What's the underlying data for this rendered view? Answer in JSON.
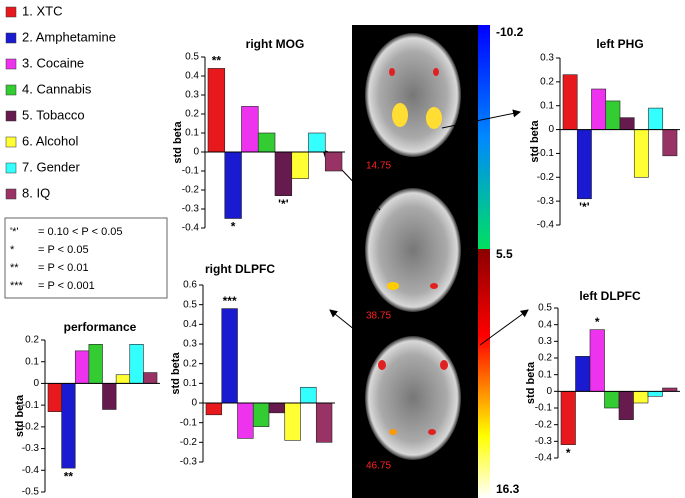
{
  "legend": {
    "names": [
      "1. XTC",
      "2. Amphetamine",
      "3. Cocaine",
      "4. Cannabis",
      "5. Tobacco",
      "6. Alcohol",
      "7. Gender",
      "8. IQ"
    ],
    "colors": [
      "#e8191c",
      "#1a1ad0",
      "#ee33ee",
      "#33cc33",
      "#661a4d",
      "#ffff33",
      "#33ffff",
      "#993366"
    ]
  },
  "significance": [
    {
      "symbol": "'*'",
      "text": "= 0.10 < P < 0.05"
    },
    {
      "symbol": "*",
      "text": "= P < 0.05"
    },
    {
      "symbol": "**",
      "text": "= P < 0.01"
    },
    {
      "symbol": "***",
      "text": "= P < 0.001"
    }
  ],
  "brain": {
    "slices": [
      "14.75",
      "38.75",
      "46.75"
    ],
    "colorbar": [
      "-10.2",
      "5.5",
      "16.3"
    ]
  },
  "chart_data": [
    {
      "type": "bar",
      "title": "right MOG",
      "ylabel": "std beta",
      "values": [
        0.44,
        -0.35,
        0.24,
        0.1,
        -0.23,
        -0.14,
        0.1,
        -0.1
      ],
      "markers": [
        "**",
        "*",
        null,
        null,
        "'*'",
        null,
        null,
        null
      ],
      "ylim": [
        -0.4,
        0.5
      ],
      "yticks": [
        -0.4,
        -0.3,
        -0.2,
        -0.1,
        0,
        0.1,
        0.2,
        0.3,
        0.4,
        0.5
      ]
    },
    {
      "type": "bar",
      "title": "left PHG",
      "ylabel": "std beta",
      "values": [
        0.23,
        -0.29,
        0.17,
        0.12,
        0.05,
        -0.2,
        0.09,
        -0.11
      ],
      "markers": [
        null,
        "'*'",
        null,
        null,
        null,
        null,
        null,
        null
      ],
      "ylim": [
        -0.4,
        0.3
      ],
      "yticks": [
        -0.4,
        -0.3,
        -0.2,
        -0.1,
        0,
        0.1,
        0.2,
        0.3
      ]
    },
    {
      "type": "bar",
      "title": "right DLPFC",
      "ylabel": "std beta",
      "values": [
        -0.06,
        0.48,
        -0.18,
        -0.12,
        -0.05,
        -0.19,
        0.08,
        -0.2
      ],
      "markers": [
        null,
        "***",
        null,
        null,
        null,
        null,
        null,
        null
      ],
      "ylim": [
        -0.3,
        0.6
      ],
      "yticks": [
        -0.3,
        -0.2,
        -0.1,
        0,
        0.1,
        0.2,
        0.3,
        0.4,
        0.5,
        0.6
      ]
    },
    {
      "type": "bar",
      "title": "left DLPFC",
      "ylabel": "std beta",
      "values": [
        -0.32,
        0.21,
        0.37,
        -0.1,
        -0.17,
        -0.07,
        -0.03,
        0.02
      ],
      "markers": [
        "*",
        null,
        "*",
        null,
        null,
        null,
        null,
        null
      ],
      "ylim": [
        -0.4,
        0.5
      ],
      "yticks": [
        -0.4,
        -0.3,
        -0.2,
        -0.1,
        0,
        0.1,
        0.2,
        0.3,
        0.4,
        0.5
      ]
    },
    {
      "type": "bar",
      "title": "performance",
      "ylabel": "std beta",
      "values": [
        -0.13,
        -0.39,
        0.15,
        0.18,
        -0.12,
        0.04,
        0.18,
        0.05
      ],
      "markers": [
        null,
        "**",
        null,
        null,
        null,
        null,
        null,
        null
      ],
      "ylim": [
        -0.5,
        0.2
      ],
      "yticks": [
        -0.5,
        -0.4,
        -0.3,
        -0.2,
        -0.1,
        0,
        0.1,
        0.2
      ]
    }
  ]
}
